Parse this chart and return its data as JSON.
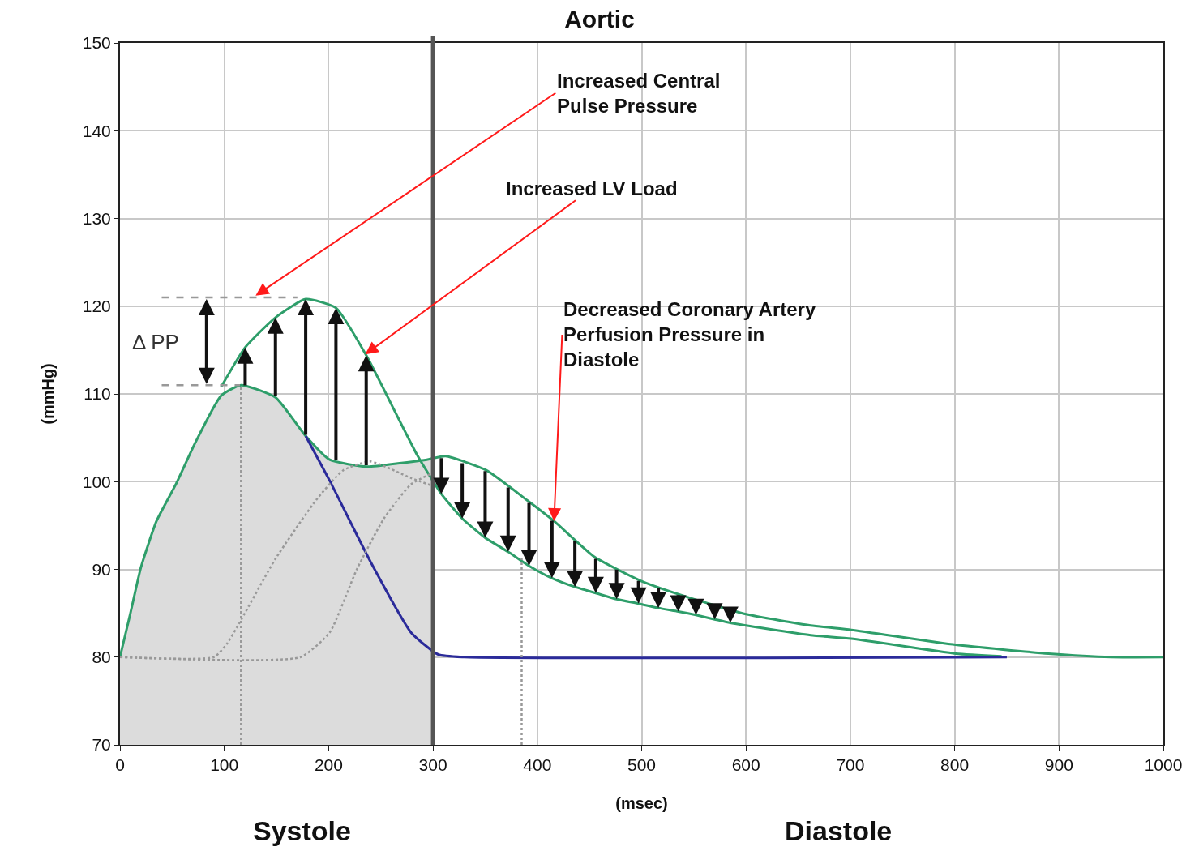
{
  "chart_data": {
    "type": "line",
    "title": "Aortic",
    "xlabel": "(msec)",
    "ylabel": "(mmHg)",
    "xlim": [
      0,
      1000
    ],
    "xticks": [
      0,
      100,
      200,
      300,
      400,
      500,
      600,
      700,
      800,
      900,
      1000
    ],
    "ylim": [
      70,
      150
    ],
    "yticks": [
      70,
      80,
      90,
      100,
      110,
      120,
      130,
      140,
      150
    ],
    "grid": true,
    "marker": "none",
    "series": [
      {
        "type": "area",
        "color": "#dcdcdc",
        "x": [
          0,
          10,
          20,
          35,
          54,
          72,
          97,
          116,
          149,
          178,
          201,
          237,
          268,
          294,
          300
        ],
        "values": [
          80,
          85,
          90.2,
          95.5,
          99.8,
          104.4,
          109.8,
          111,
          109.6,
          105.2,
          102.5,
          101.7,
          102.1,
          102.5,
          102.6
        ]
      },
      {
        "color": "#2e9e6a",
        "x": [
          0,
          10,
          20,
          35,
          54,
          72,
          97,
          116,
          149,
          178,
          201,
          237,
          268,
          294,
          312,
          351,
          390,
          416,
          455,
          499,
          545,
          600,
          662,
          701,
          801,
          890,
          950,
          1000
        ],
        "values": [
          80,
          85,
          90.2,
          95.5,
          99.8,
          104.4,
          109.8,
          111,
          109.6,
          105.2,
          102.5,
          101.7,
          102.1,
          102.5,
          102.9,
          101.3,
          97.9,
          95.5,
          91.4,
          88.7,
          86.8,
          84.9,
          83.6,
          83.1,
          81.4,
          80.4,
          80,
          80
        ]
      },
      {
        "color": "#2e9e6a",
        "x": [
          97,
          120,
          149,
          178,
          207,
          236,
          285,
          308,
          328,
          350,
          372,
          392,
          414,
          436,
          456,
          476,
          497,
          516,
          535,
          552,
          570,
          585,
          662,
          701,
          801,
          845
        ],
        "values": [
          110.8,
          115.3,
          118.7,
          120.8,
          119.8,
          114.4,
          103,
          98.6,
          95.8,
          93.6,
          92,
          90.4,
          89,
          88,
          87.3,
          86.6,
          86.1,
          85.6,
          85.2,
          84.8,
          84.3,
          83.9,
          82.5,
          82.1,
          80.4,
          80.1
        ]
      },
      {
        "color": "#2b2b9a",
        "x": [
          178,
          201,
          240,
          279,
          305,
          330,
          850
        ],
        "values": [
          105.2,
          100.1,
          90.9,
          82.8,
          80.3,
          80,
          80
        ]
      },
      {
        "color": "#999999",
        "line_style": "dotted",
        "x": [
          0,
          90,
          103,
          149,
          188,
          214,
          240,
          279,
          300
        ],
        "values": [
          80,
          80,
          81.6,
          91.2,
          97.9,
          101.3,
          102.3,
          100.4,
          99.5
        ]
      },
      {
        "color": "#999999",
        "line_style": "dotted",
        "x": [
          0,
          173,
          201,
          227,
          253,
          279,
          300
        ],
        "values": [
          80,
          80,
          82.8,
          90,
          95.8,
          99.7,
          101
        ]
      },
      {
        "color": "#999999",
        "line_style": "dotted",
        "x": [
          116,
          116
        ],
        "values": [
          70,
          111
        ]
      },
      {
        "color": "#999999",
        "line_style": "dotted",
        "x": [
          385,
          385
        ],
        "values": [
          70,
          91.3
        ]
      },
      {
        "color": "#999999",
        "line_style": "dashed",
        "x": [
          40,
          170
        ],
        "values": [
          121,
          121
        ]
      },
      {
        "color": "#999999",
        "line_style": "dashed",
        "x": [
          40,
          115
        ],
        "values": [
          111,
          111
        ]
      }
    ],
    "ref_lines": [
      {
        "axis": "x",
        "value": 300,
        "color": "#555555"
      }
    ],
    "annotations": [
      {
        "text": "Increased Central\nPulse Pressure",
        "x": 130,
        "y": 121.2
      },
      {
        "text": "Increased LV Load",
        "x": 235,
        "y": 114.5
      },
      {
        "text": "Decreased Coronary Artery\nPerfusion Pressure in\nDiastole",
        "x": 416,
        "y": 95.5
      },
      "Δ PP",
      "Systole",
      "Diastole"
    ]
  }
}
